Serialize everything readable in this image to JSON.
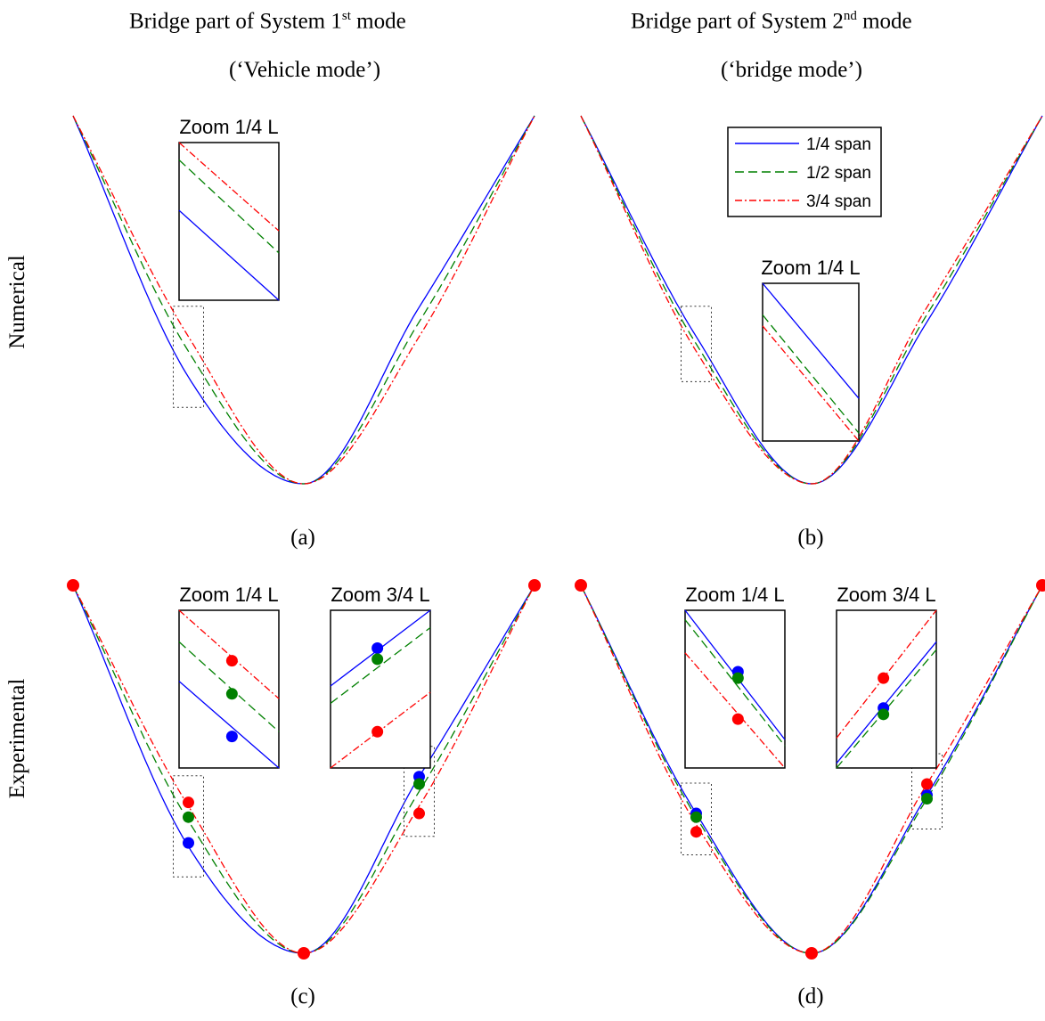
{
  "headers": {
    "left": {
      "prefix": "Bridge part of System 1",
      "sup": "st",
      "suffix": " mode",
      "sub": "(‘Vehicle mode’)"
    },
    "right": {
      "prefix": "Bridge part of System 2",
      "sup": "nd",
      "suffix": " mode",
      "sub": "(‘bridge mode’)"
    }
  },
  "row_labels": {
    "top": "Numerical",
    "bottom": "Experimental"
  },
  "captions": {
    "a": "(a)",
    "b": "(b)",
    "c": "(c)",
    "d": "(d)"
  },
  "legend": [
    {
      "label": "1/4 span",
      "color": "#0000ff",
      "dash": "solid"
    },
    {
      "label": "1/2 span",
      "color": "#008000",
      "dash": "dashed"
    },
    {
      "label": "3/4 span",
      "color": "#ff0000",
      "dash": "dashdot"
    }
  ],
  "zoom_labels": {
    "quarter": "Zoom 1/4 L",
    "three_quarter": "Zoom 3/4 L"
  },
  "colors": {
    "blue": "#0000ff",
    "green": "#008000",
    "red": "#ff0000"
  },
  "chart_data": [
    {
      "id": "a",
      "type": "line",
      "panel": "Numerical, System 1st mode",
      "x_unit": "normalized span position",
      "series": [
        {
          "name": "1/4 span",
          "style": "solid",
          "x": [
            0,
            0.25,
            0.5,
            0.75,
            1
          ],
          "y": [
            1.0,
            0.29,
            0.0,
            0.48,
            1.0
          ]
        },
        {
          "name": "1/2 span",
          "style": "dashed",
          "x": [
            0,
            0.25,
            0.5,
            0.75,
            1
          ],
          "y": [
            1.0,
            0.36,
            0.0,
            0.44,
            1.0
          ]
        },
        {
          "name": "3/4 span",
          "style": "dashdot",
          "x": [
            0,
            0.25,
            0.5,
            0.75,
            1
          ],
          "y": [
            1.0,
            0.4,
            0.0,
            0.4,
            1.0
          ]
        }
      ]
    },
    {
      "id": "b",
      "type": "line",
      "panel": "Numerical, System 2nd mode",
      "x_unit": "normalized span position",
      "series": [
        {
          "name": "1/4 span",
          "style": "solid",
          "x": [
            0,
            0.25,
            0.5,
            0.75,
            1
          ],
          "y": [
            1.0,
            0.4,
            0.0,
            0.44,
            1.0
          ]
        },
        {
          "name": "1/2 span",
          "style": "dashed",
          "x": [
            0,
            0.25,
            0.5,
            0.75,
            1
          ],
          "y": [
            1.0,
            0.38,
            0.0,
            0.46,
            1.0
          ]
        },
        {
          "name": "3/4 span",
          "style": "dashdot",
          "x": [
            0,
            0.25,
            0.5,
            0.75,
            1
          ],
          "y": [
            1.0,
            0.36,
            0.0,
            0.48,
            1.0
          ]
        }
      ]
    },
    {
      "id": "c",
      "type": "line",
      "panel": "Experimental, System 1st mode",
      "x_unit": "normalized span position",
      "series": [
        {
          "name": "1/4 span",
          "style": "solid",
          "x": [
            0,
            0.25,
            0.5,
            0.75,
            1
          ],
          "y": [
            1.0,
            0.29,
            0.0,
            0.48,
            1.0
          ]
        },
        {
          "name": "1/2 span",
          "style": "dashed",
          "x": [
            0,
            0.25,
            0.5,
            0.75,
            1
          ],
          "y": [
            1.0,
            0.36,
            0.0,
            0.44,
            1.0
          ]
        },
        {
          "name": "3/4 span",
          "style": "dashdot",
          "x": [
            0,
            0.25,
            0.5,
            0.75,
            1
          ],
          "y": [
            1.0,
            0.4,
            0.0,
            0.4,
            1.0
          ]
        }
      ],
      "measured_points": [
        {
          "series": "1/4 span",
          "x": 0.25,
          "y": 0.3
        },
        {
          "series": "1/2 span",
          "x": 0.25,
          "y": 0.37
        },
        {
          "series": "3/4 span",
          "x": 0.25,
          "y": 0.41
        },
        {
          "series": "1/4 span",
          "x": 0.75,
          "y": 0.48
        },
        {
          "series": "1/2 span",
          "x": 0.75,
          "y": 0.46
        },
        {
          "series": "3/4 span",
          "x": 0.75,
          "y": 0.38
        }
      ]
    },
    {
      "id": "d",
      "type": "line",
      "panel": "Experimental, System 2nd mode",
      "x_unit": "normalized span position",
      "series": [
        {
          "name": "1/4 span",
          "style": "solid",
          "x": [
            0,
            0.25,
            0.5,
            0.75,
            1
          ],
          "y": [
            1.0,
            0.38,
            0.0,
            0.43,
            1.0
          ]
        },
        {
          "name": "1/2 span",
          "style": "dashed",
          "x": [
            0,
            0.25,
            0.5,
            0.75,
            1
          ],
          "y": [
            1.0,
            0.37,
            0.0,
            0.42,
            1.0
          ]
        },
        {
          "name": "3/4 span",
          "style": "dashdot",
          "x": [
            0,
            0.25,
            0.5,
            0.75,
            1
          ],
          "y": [
            1.0,
            0.35,
            0.0,
            0.46,
            1.0
          ]
        }
      ],
      "measured_points": [
        {
          "series": "1/4 span",
          "x": 0.25,
          "y": 0.38
        },
        {
          "series": "1/2 span",
          "x": 0.25,
          "y": 0.37
        },
        {
          "series": "3/4 span",
          "x": 0.25,
          "y": 0.33
        },
        {
          "series": "1/4 span",
          "x": 0.75,
          "y": 0.43
        },
        {
          "series": "1/2 span",
          "x": 0.75,
          "y": 0.42
        },
        {
          "series": "3/4 span",
          "x": 0.75,
          "y": 0.46
        }
      ]
    }
  ]
}
